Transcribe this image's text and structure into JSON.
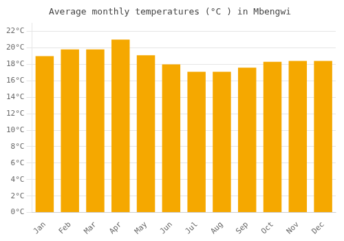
{
  "chart_data": {
    "type": "bar",
    "title": "Average monthly temperatures (°C ) in Mbengwi",
    "categories": [
      "Jan",
      "Feb",
      "Mar",
      "Apr",
      "May",
      "Jun",
      "Jul",
      "Aug",
      "Sep",
      "Oct",
      "Nov",
      "Dec"
    ],
    "values": [
      19.0,
      19.8,
      19.8,
      21.0,
      19.1,
      18.0,
      17.1,
      17.1,
      17.6,
      18.3,
      18.4,
      18.4
    ],
    "color": "#F5A800",
    "ylim": [
      0,
      23
    ],
    "yticks": [
      {
        "value": 0,
        "label": "0°C"
      },
      {
        "value": 2,
        "label": "2°C"
      },
      {
        "value": 4,
        "label": "4°C"
      },
      {
        "value": 6,
        "label": "6°C"
      },
      {
        "value": 8,
        "label": "8°C"
      },
      {
        "value": 10,
        "label": "10°C"
      },
      {
        "value": 12,
        "label": "12°C"
      },
      {
        "value": 14,
        "label": "14°C"
      },
      {
        "value": 16,
        "label": "16°C"
      },
      {
        "value": 18,
        "label": "18°C"
      },
      {
        "value": 20,
        "label": "20°C"
      },
      {
        "value": 22,
        "label": "22°C"
      }
    ],
    "grid": true
  }
}
